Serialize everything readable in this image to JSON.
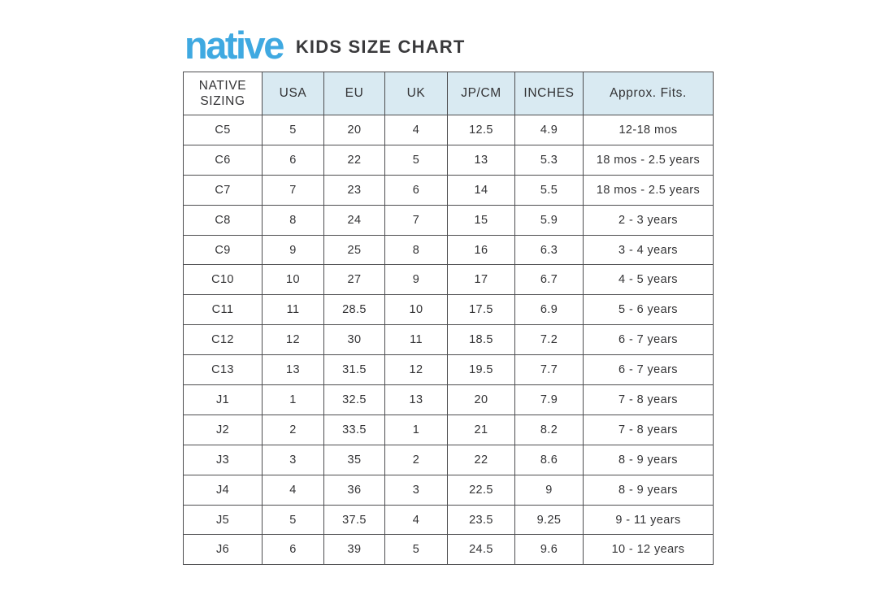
{
  "brand": {
    "logo_text": "native",
    "title": "KIDS SIZE CHART"
  },
  "colors": {
    "logo_blue": "#3fa9e1",
    "header_background": "#d9eaf2",
    "table_border": "#4d4d4f",
    "text": "#333335",
    "page_background": "#ffffff"
  },
  "chart_data": {
    "type": "table",
    "title": "native KIDS SIZE CHART",
    "columns": [
      "NATIVE SIZING",
      "USA",
      "EU",
      "UK",
      "JP/CM",
      "INCHES",
      "Approx. Fits."
    ],
    "rows": [
      [
        "C5",
        "5",
        "20",
        "4",
        "12.5",
        "4.9",
        "12-18 mos"
      ],
      [
        "C6",
        "6",
        "22",
        "5",
        "13",
        "5.3",
        "18 mos - 2.5 years"
      ],
      [
        "C7",
        "7",
        "23",
        "6",
        "14",
        "5.5",
        "18 mos - 2.5 years"
      ],
      [
        "C8",
        "8",
        "24",
        "7",
        "15",
        "5.9",
        "2 - 3 years"
      ],
      [
        "C9",
        "9",
        "25",
        "8",
        "16",
        "6.3",
        "3 - 4 years"
      ],
      [
        "C10",
        "10",
        "27",
        "9",
        "17",
        "6.7",
        "4 - 5 years"
      ],
      [
        "C11",
        "11",
        "28.5",
        "10",
        "17.5",
        "6.9",
        "5 - 6 years"
      ],
      [
        "C12",
        "12",
        "30",
        "11",
        "18.5",
        "7.2",
        "6 - 7 years"
      ],
      [
        "C13",
        "13",
        "31.5",
        "12",
        "19.5",
        "7.7",
        "6 - 7 years"
      ],
      [
        "J1",
        "1",
        "32.5",
        "13",
        "20",
        "7.9",
        "7 - 8 years"
      ],
      [
        "J2",
        "2",
        "33.5",
        "1",
        "21",
        "8.2",
        "7 - 8 years"
      ],
      [
        "J3",
        "3",
        "35",
        "2",
        "22",
        "8.6",
        "8 - 9 years"
      ],
      [
        "J4",
        "4",
        "36",
        "3",
        "22.5",
        "9",
        "8 - 9 years"
      ],
      [
        "J5",
        "5",
        "37.5",
        "4",
        "23.5",
        "9.25",
        "9 - 11 years"
      ],
      [
        "J6",
        "6",
        "39",
        "5",
        "24.5",
        "9.6",
        "10 - 12 years"
      ]
    ]
  }
}
